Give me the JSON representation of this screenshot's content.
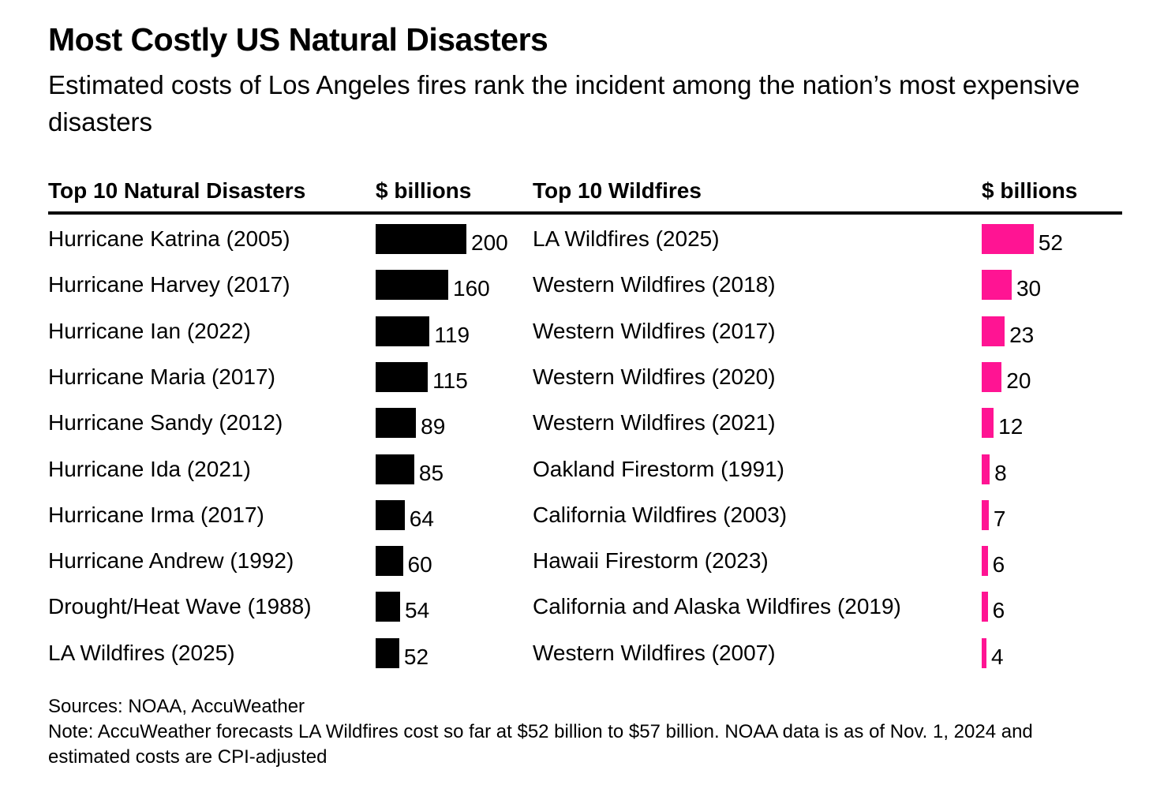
{
  "title": "Most Costly US Natural Disasters",
  "subtitle": "Estimated costs of Los Angeles fires rank the incident among the nation’s most expensive disasters",
  "colors": {
    "disasters_bar": "#000000",
    "wildfires_bar": "#ff1493",
    "rule": "#000000"
  },
  "chart_data": [
    {
      "type": "bar",
      "orientation": "horizontal",
      "title": "Top 10 Natural Disasters",
      "value_header": "$ billions",
      "categories": [
        "Hurricane Katrina (2005)",
        "Hurricane Harvey (2017)",
        "Hurricane Ian (2022)",
        "Hurricane Maria (2017)",
        "Hurricane Sandy (2012)",
        "Hurricane Ida (2021)",
        "Hurricane Irma (2017)",
        "Hurricane Andrew (1992)",
        "Drought/Heat Wave (1988)",
        "LA Wildfires (2025)"
      ],
      "values": [
        200,
        160,
        119,
        115,
        89,
        85,
        64,
        60,
        54,
        52
      ],
      "color": "#000000"
    },
    {
      "type": "bar",
      "orientation": "horizontal",
      "title": "Top 10 Wildfires",
      "value_header": "$ billions",
      "categories": [
        "LA Wildfires (2025)",
        "Western Wildfires (2018)",
        "Western Wildfires (2017)",
        "Western Wildfires (2020)",
        "Western Wildfires (2021)",
        "Oakland Firestorm (1991)",
        "California Wildfires (2003)",
        "Hawaii Firestorm (2023)",
        "California and Alaska Wildfires (2019)",
        "Western Wildfires (2007)"
      ],
      "values": [
        52,
        30,
        23,
        20,
        12,
        8,
        7,
        6,
        6,
        4
      ],
      "color": "#ff1493"
    }
  ],
  "footer": {
    "sources": "Sources: NOAA, AccuWeather",
    "note": "Note: AccuWeather forecasts LA Wildfires cost so far at $52 billion to $57 billion. NOAA data is as of Nov. 1, 2024 and estimated costs are CPI-adjusted"
  }
}
